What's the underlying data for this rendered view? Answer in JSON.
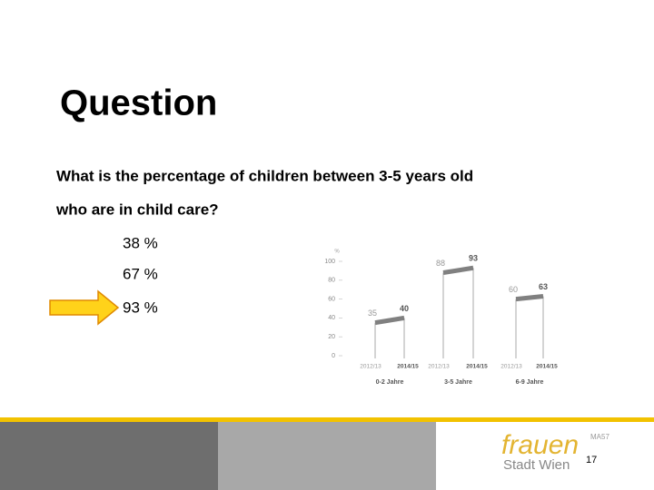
{
  "slide": {
    "title": "Question",
    "question": [
      "What is the percentage of children between 3-5 years old",
      "who are in child care?"
    ],
    "options": [
      "38 %",
      "67 %",
      "93 %"
    ]
  },
  "chart_data": {
    "type": "line",
    "y_label": "%",
    "categories": [
      "2012/13",
      "2014/15"
    ],
    "series": [
      {
        "name": "0-2 Jahre",
        "color": "#808080",
        "values": [
          35,
          40
        ]
      },
      {
        "name": "3-5 Jahre",
        "color": "#808080",
        "values": [
          88,
          93
        ]
      },
      {
        "name": "6-9 Jahre",
        "color": "#808080",
        "values": [
          60,
          63
        ]
      }
    ],
    "ylim": [
      0,
      100
    ],
    "yticks": [
      0,
      20,
      40,
      60,
      80,
      100
    ]
  },
  "footer": {
    "logo": "frauen",
    "department": "MA57",
    "city": "Stadt Wien",
    "page_number": "17"
  }
}
